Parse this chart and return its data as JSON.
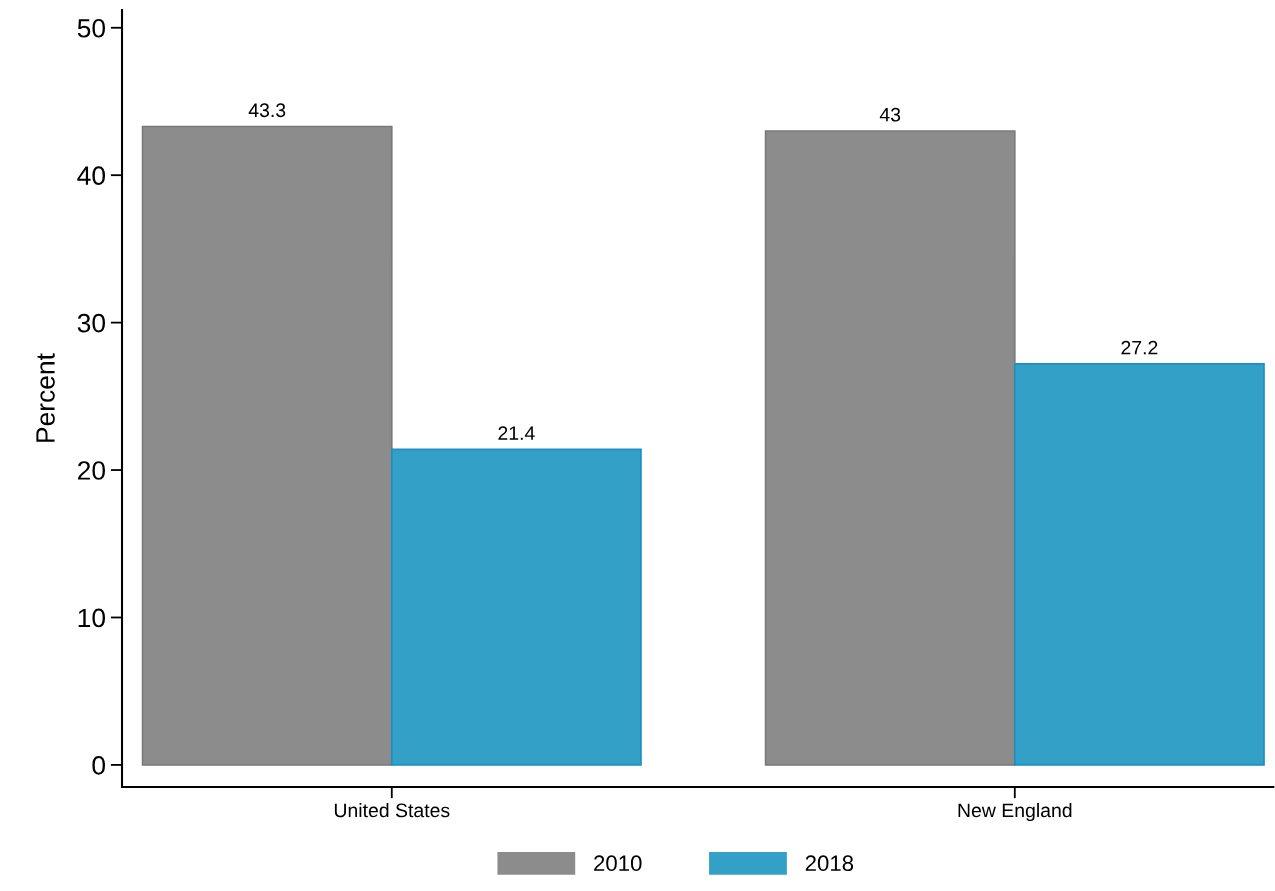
{
  "chart_data": {
    "type": "bar",
    "ylabel": "Percent",
    "categories": [
      "United States",
      "New England"
    ],
    "series": [
      {
        "name": "2010",
        "color": "#8c8c8c",
        "values": [
          43.3,
          43
        ]
      },
      {
        "name": "2018",
        "color": "#33a0c8",
        "values": [
          21.4,
          27.2
        ]
      }
    ],
    "ylim": [
      -1.5,
      51.2
    ],
    "yticks": [
      0,
      10,
      20,
      30,
      40,
      50
    ],
    "data_labels": true,
    "legend": "bottom",
    "grid": false
  }
}
